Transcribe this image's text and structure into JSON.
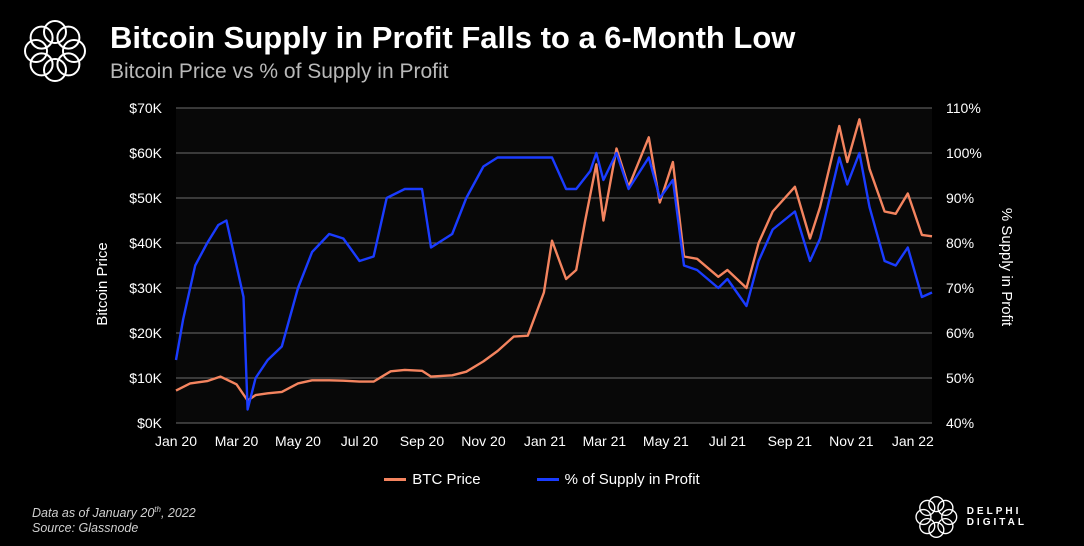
{
  "header": {
    "title": "Bitcoin Supply in Profit Falls to a 6-Month Low",
    "subtitle": "Bitcoin Price vs % of Supply in Profit"
  },
  "footer": {
    "note_prefix": "Data as of January 20",
    "note_sup": "th",
    "note_suffix": ", 2022",
    "source": "Source: Glassnode",
    "brand": "DELPHI DIGITAL"
  },
  "icons": {
    "logo": "delphi-ring-icon",
    "brand_logo": "delphi-ring-icon"
  },
  "colors": {
    "btc": "#f4845f",
    "supply": "#1a3cff",
    "background": "#000000",
    "grid": "#6b6b6b"
  },
  "chart_data": {
    "type": "line",
    "xlabels": [
      "Jan 20",
      "Mar 20",
      "May 20",
      "Jul 20",
      "Sep 20",
      "Nov 20",
      "Jan 21",
      "Mar 21",
      "May 21",
      "Jul 21",
      "Sep 21",
      "Nov 21",
      "Jan 22"
    ],
    "x_range": [
      "2020-01-01",
      "2022-01-20"
    ],
    "y_left": {
      "label": "Bitcoin Price",
      "ticks": [
        "$0K",
        "$10K",
        "$20K",
        "$30K",
        "$40K",
        "$50K",
        "$60K",
        "$70K"
      ],
      "range": [
        0,
        70000
      ]
    },
    "y_right": {
      "label": "% Supply in Profit",
      "ticks": [
        "40%",
        "50%",
        "60%",
        "70%",
        "80%",
        "90%",
        "100%",
        "110%"
      ],
      "range": [
        40,
        110
      ]
    },
    "grid": true,
    "legend_position": "bottom",
    "series": [
      {
        "name": "BTC Price",
        "axis": "left",
        "color": "#f4845f",
        "points": [
          [
            "2020-01-01",
            7200
          ],
          [
            "2020-01-15",
            8800
          ],
          [
            "2020-02-01",
            9300
          ],
          [
            "2020-02-14",
            10300
          ],
          [
            "2020-03-01",
            8600
          ],
          [
            "2020-03-12",
            5000
          ],
          [
            "2020-03-20",
            6200
          ],
          [
            "2020-04-01",
            6600
          ],
          [
            "2020-04-15",
            6900
          ],
          [
            "2020-05-01",
            8800
          ],
          [
            "2020-05-15",
            9500
          ],
          [
            "2020-06-01",
            9500
          ],
          [
            "2020-06-15",
            9400
          ],
          [
            "2020-07-01",
            9200
          ],
          [
            "2020-07-15",
            9200
          ],
          [
            "2020-08-01",
            11500
          ],
          [
            "2020-08-15",
            11800
          ],
          [
            "2020-09-01",
            11600
          ],
          [
            "2020-09-10",
            10300
          ],
          [
            "2020-10-01",
            10600
          ],
          [
            "2020-10-15",
            11400
          ],
          [
            "2020-11-01",
            13700
          ],
          [
            "2020-11-15",
            16000
          ],
          [
            "2020-12-01",
            19200
          ],
          [
            "2020-12-15",
            19400
          ],
          [
            "2020-12-31",
            29000
          ],
          [
            "2021-01-08",
            40500
          ],
          [
            "2021-01-22",
            32000
          ],
          [
            "2021-02-01",
            34000
          ],
          [
            "2021-02-10",
            45000
          ],
          [
            "2021-02-21",
            57500
          ],
          [
            "2021-02-28",
            45000
          ],
          [
            "2021-03-13",
            61000
          ],
          [
            "2021-03-25",
            52500
          ],
          [
            "2021-04-14",
            63500
          ],
          [
            "2021-04-25",
            49000
          ],
          [
            "2021-05-08",
            58000
          ],
          [
            "2021-05-19",
            37000
          ],
          [
            "2021-06-01",
            36500
          ],
          [
            "2021-06-22",
            32500
          ],
          [
            "2021-07-01",
            34000
          ],
          [
            "2021-07-20",
            30000
          ],
          [
            "2021-08-01",
            40000
          ],
          [
            "2021-08-15",
            47000
          ],
          [
            "2021-09-06",
            52500
          ],
          [
            "2021-09-21",
            41000
          ],
          [
            "2021-10-01",
            48000
          ],
          [
            "2021-10-20",
            66000
          ],
          [
            "2021-10-28",
            58000
          ],
          [
            "2021-11-09",
            67500
          ],
          [
            "2021-11-19",
            56500
          ],
          [
            "2021-12-04",
            47000
          ],
          [
            "2021-12-15",
            46500
          ],
          [
            "2021-12-27",
            51000
          ],
          [
            "2022-01-10",
            41800
          ],
          [
            "2022-01-20",
            41500
          ]
        ]
      },
      {
        "name": "% of Supply in Profit",
        "axis": "right",
        "color": "#1a3cff",
        "points": [
          [
            "2020-01-01",
            54
          ],
          [
            "2020-01-08",
            63
          ],
          [
            "2020-01-20",
            75
          ],
          [
            "2020-02-01",
            80
          ],
          [
            "2020-02-12",
            84
          ],
          [
            "2020-02-20",
            85
          ],
          [
            "2020-03-01",
            75
          ],
          [
            "2020-03-08",
            68
          ],
          [
            "2020-03-12",
            43
          ],
          [
            "2020-03-20",
            50
          ],
          [
            "2020-04-01",
            54
          ],
          [
            "2020-04-15",
            57
          ],
          [
            "2020-05-01",
            70
          ],
          [
            "2020-05-15",
            78
          ],
          [
            "2020-06-01",
            82
          ],
          [
            "2020-06-15",
            81
          ],
          [
            "2020-07-01",
            76
          ],
          [
            "2020-07-15",
            77
          ],
          [
            "2020-07-28",
            90
          ],
          [
            "2020-08-15",
            92
          ],
          [
            "2020-09-01",
            92
          ],
          [
            "2020-09-10",
            79
          ],
          [
            "2020-10-01",
            82
          ],
          [
            "2020-10-15",
            90
          ],
          [
            "2020-11-01",
            97
          ],
          [
            "2020-11-15",
            99
          ],
          [
            "2020-12-01",
            99
          ],
          [
            "2020-12-15",
            99
          ],
          [
            "2021-01-08",
            99
          ],
          [
            "2021-01-22",
            92
          ],
          [
            "2021-02-01",
            92
          ],
          [
            "2021-02-15",
            96
          ],
          [
            "2021-02-21",
            100
          ],
          [
            "2021-02-28",
            94
          ],
          [
            "2021-03-13",
            100
          ],
          [
            "2021-03-25",
            92
          ],
          [
            "2021-04-14",
            99
          ],
          [
            "2021-04-25",
            90
          ],
          [
            "2021-05-08",
            94
          ],
          [
            "2021-05-19",
            75
          ],
          [
            "2021-06-01",
            74
          ],
          [
            "2021-06-22",
            70
          ],
          [
            "2021-07-01",
            72
          ],
          [
            "2021-07-20",
            66
          ],
          [
            "2021-08-01",
            76
          ],
          [
            "2021-08-15",
            83
          ],
          [
            "2021-09-06",
            87
          ],
          [
            "2021-09-21",
            76
          ],
          [
            "2021-10-01",
            81
          ],
          [
            "2021-10-20",
            99
          ],
          [
            "2021-10-28",
            93
          ],
          [
            "2021-11-09",
            100
          ],
          [
            "2021-11-19",
            88
          ],
          [
            "2021-12-04",
            76
          ],
          [
            "2021-12-15",
            75
          ],
          [
            "2021-12-27",
            79
          ],
          [
            "2022-01-10",
            68
          ],
          [
            "2022-01-20",
            69
          ]
        ]
      }
    ]
  }
}
